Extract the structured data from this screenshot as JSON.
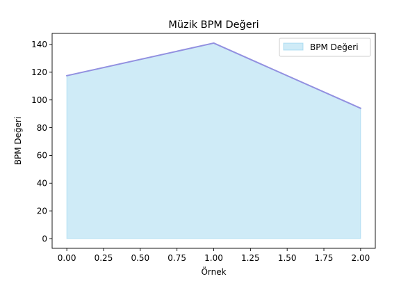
{
  "chart_data": {
    "type": "area",
    "title": "Müzik BPM Değeri",
    "xlabel": "Örnek",
    "ylabel": "BPM Değeri",
    "xlim": [
      -0.1,
      2.1
    ],
    "ylim": [
      -7,
      148
    ],
    "x_ticks": [
      "0.00",
      "0.25",
      "0.50",
      "0.75",
      "1.00",
      "1.25",
      "1.50",
      "1.75",
      "2.00"
    ],
    "y_ticks": [
      "0",
      "20",
      "40",
      "60",
      "80",
      "100",
      "120",
      "140"
    ],
    "x": [
      0,
      1,
      2
    ],
    "series": [
      {
        "name": "BPM Değeri",
        "values": [
          117.5,
          141,
          94
        ],
        "fill_color": "#87ceeb",
        "fill_opacity": 0.4,
        "line_color": "#9290e0"
      }
    ],
    "grid": false,
    "legend_position": "upper-right"
  }
}
